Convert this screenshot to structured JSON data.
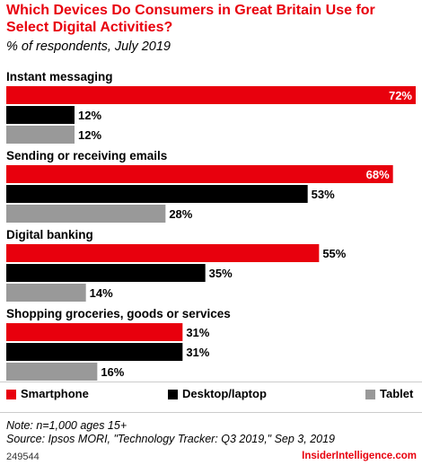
{
  "header": {
    "title": "Which Devices Do Consumers in Great Britain Use for Select Digital Activities?",
    "subtitle": "% of respondents, July 2019"
  },
  "chart_data": {
    "type": "bar",
    "orientation": "horizontal",
    "categories": [
      "Instant messaging",
      "Sending or receiving emails",
      "Digital banking",
      "Shopping groceries, goods or services"
    ],
    "series": [
      {
        "name": "Smartphone",
        "color": "#e8000d",
        "values": [
          72,
          68,
          55,
          31
        ]
      },
      {
        "name": "Desktop/laptop",
        "color": "#000000",
        "values": [
          12,
          53,
          35,
          31
        ]
      },
      {
        "name": "Tablet",
        "color": "#999999",
        "values": [
          12,
          28,
          14,
          16
        ]
      }
    ],
    "value_suffix": "%",
    "xlim": [
      0,
      72
    ],
    "grid": false,
    "legend_position": "bottom"
  },
  "footer": {
    "note": "Note: n=1,000 ages 15+",
    "source": "Source: Ipsos MORI, \"Technology Tracker: Q3 2019,\" Sep 3, 2019",
    "chart_id": "249544",
    "brand": "InsiderIntelligence.com"
  }
}
